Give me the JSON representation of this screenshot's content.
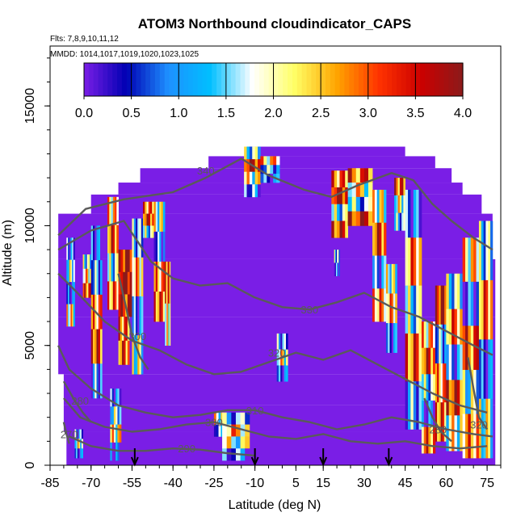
{
  "chart_data": {
    "type": "heatmap",
    "title": "ATOM3 Northbound cloudindicator_CAPS",
    "subtitle_flights": "Flts: 7,8,9,10,11,12",
    "subtitle_dates": "MMDD: 1014,1017,1019,1020,1023,1025",
    "xlabel": "Latitude (deg N)",
    "ylabel": "Altitude (m)",
    "xlim": [
      -85,
      80
    ],
    "ylim": [
      0,
      17500
    ],
    "x_ticks": [
      -85,
      -70,
      -55,
      -40,
      -25,
      -10,
      5,
      15,
      30,
      45,
      60,
      75
    ],
    "y_ticks": [
      0,
      5000,
      10000,
      15000
    ],
    "colorbar": {
      "range": [
        0,
        4
      ],
      "ticks": [
        "0.0",
        "0.5",
        "1.0",
        "1.5",
        "2.0",
        "2.5",
        "3.0",
        "3.5",
        "4.0"
      ],
      "colors": [
        "#7a1ee6",
        "#0000b3",
        "#1e90ff",
        "#00bfff",
        "#ffffff",
        "#ffff66",
        "#ffa500",
        "#ff3300",
        "#cc0000",
        "#8b1a1a"
      ]
    },
    "background_value": 0.0,
    "region_rows": [
      {
        "y0": 0,
        "y1": 1400,
        "x0": -79,
        "x1": 78
      },
      {
        "y0": 1400,
        "y1": 2500,
        "x0": -80,
        "x1": 78
      },
      {
        "y0": 2500,
        "y1": 3800,
        "x0": -80,
        "x1": 78
      },
      {
        "y0": 3800,
        "y1": 6200,
        "x0": -82,
        "x1": 78
      },
      {
        "y0": 6200,
        "y1": 8600,
        "x0": -82,
        "x1": 78
      },
      {
        "y0": 8600,
        "y1": 10500,
        "x0": -82,
        "x1": 77
      },
      {
        "y0": 10500,
        "y1": 11300,
        "x0": -70,
        "x1": 73
      },
      {
        "y0": 11300,
        "y1": 11800,
        "x0": -60,
        "x1": 66
      },
      {
        "y0": 11800,
        "y1": 12400,
        "x0": -52,
        "x1": 62
      },
      {
        "y0": 12400,
        "y1": 12900,
        "x0": -27,
        "x1": 56
      },
      {
        "y0": 12900,
        "y1": 13300,
        "x0": -13,
        "x1": 45
      }
    ],
    "cloud_columns": [
      {
        "lat0": -79,
        "lat1": -76,
        "alt0": 5800,
        "alt1": 9500,
        "values": [
          0.9,
          1.8,
          0.5,
          2.2
        ]
      },
      {
        "lat0": -76,
        "lat1": -73,
        "alt0": 300,
        "alt1": 1500,
        "values": [
          1.0,
          2.0,
          0.6
        ]
      },
      {
        "lat0": -73,
        "lat1": -70,
        "alt0": 7000,
        "alt1": 8800,
        "values": [
          1.5,
          2.4,
          3.0
        ]
      },
      {
        "lat0": -70,
        "lat1": -66,
        "alt0": 2800,
        "alt1": 10000,
        "values": [
          0.6,
          1.2,
          2.6,
          3.2,
          1.0
        ]
      },
      {
        "lat0": -63,
        "lat1": -59,
        "alt0": 200,
        "alt1": 3200,
        "values": [
          0.8,
          1.6,
          2.2,
          0.5
        ]
      },
      {
        "lat0": -64,
        "lat1": -60,
        "alt0": 6500,
        "alt1": 11200,
        "values": [
          2.4,
          3.1,
          1.5,
          2.8
        ]
      },
      {
        "lat0": -60,
        "lat1": -55,
        "alt0": 6200,
        "alt1": 9000,
        "values": [
          3.6,
          3.9,
          3.4
        ]
      },
      {
        "lat0": -60,
        "lat1": -56,
        "alt0": 4200,
        "alt1": 6200,
        "values": [
          2.9,
          3.1
        ]
      },
      {
        "lat0": -55,
        "lat1": -51,
        "alt0": 3800,
        "alt1": 10300,
        "values": [
          1.2,
          2.5,
          0.8,
          1.8
        ]
      },
      {
        "lat0": -51,
        "lat1": -47,
        "alt0": 9500,
        "alt1": 11000,
        "values": [
          2.8,
          3.3,
          1.5
        ]
      },
      {
        "lat0": -47,
        "lat1": -43,
        "alt0": 6000,
        "alt1": 11000,
        "values": [
          1.9,
          0.9,
          2.6,
          3.0
        ]
      },
      {
        "lat0": -43,
        "lat1": -41,
        "alt0": 5000,
        "alt1": 8500,
        "values": [
          3.0,
          2.2
        ]
      },
      {
        "lat0": -25,
        "lat1": -20,
        "alt0": 1200,
        "alt1": 2200,
        "values": [
          2.0,
          1.0
        ]
      },
      {
        "lat0": -22,
        "lat1": -12,
        "alt0": 200,
        "alt1": 2200,
        "values": [
          1.2,
          2.5,
          1.8,
          0.9
        ]
      },
      {
        "lat0": -14,
        "lat1": -8,
        "alt0": 11200,
        "alt1": 13300,
        "values": [
          1.5,
          3.5,
          2.0,
          1.0
        ]
      },
      {
        "lat0": -8,
        "lat1": -1,
        "alt0": 11800,
        "alt1": 12900,
        "values": [
          2.4,
          1.2,
          0.7
        ]
      },
      {
        "lat0": -2,
        "lat1": 2,
        "alt0": 3500,
        "alt1": 5500,
        "values": [
          1.1,
          2.2,
          0.6
        ]
      },
      {
        "lat0": 18,
        "lat1": 24,
        "alt0": 9500,
        "alt1": 12300,
        "values": [
          2.8,
          3.6,
          1.5,
          3.2
        ]
      },
      {
        "lat0": 19,
        "lat1": 21,
        "alt0": 7900,
        "alt1": 9000,
        "values": [
          1.3,
          0.8
        ]
      },
      {
        "lat0": 24,
        "lat1": 33,
        "alt0": 10000,
        "alt1": 12400,
        "values": [
          3.0,
          2.2,
          1.3,
          3.4
        ]
      },
      {
        "lat0": 33,
        "lat1": 38,
        "alt0": 6000,
        "alt1": 11500,
        "values": [
          2.0,
          3.2,
          0.9,
          2.6
        ]
      },
      {
        "lat0": 38,
        "lat1": 42,
        "alt0": 4700,
        "alt1": 8400,
        "values": [
          1.8,
          2.6,
          0.7
        ]
      },
      {
        "lat0": 41,
        "lat1": 45,
        "alt0": 9800,
        "alt1": 12000,
        "values": [
          3.1,
          2.0,
          1.2
        ]
      },
      {
        "lat0": 45,
        "lat1": 51,
        "alt0": 1500,
        "alt1": 11500,
        "values": [
          0.8,
          2.7,
          1.5,
          3.0,
          1.1
        ]
      },
      {
        "lat0": 51,
        "lat1": 56,
        "alt0": 500,
        "alt1": 6000,
        "values": [
          2.4,
          3.2,
          1.4,
          0.6,
          2.9
        ]
      },
      {
        "lat0": 56,
        "lat1": 60,
        "alt0": 1000,
        "alt1": 7500,
        "values": [
          3.5,
          1.2,
          2.6,
          3.0
        ]
      },
      {
        "lat0": 60,
        "lat1": 66,
        "alt0": 600,
        "alt1": 8000,
        "values": [
          1.5,
          2.8,
          0.9,
          3.3,
          2.0
        ]
      },
      {
        "lat0": 66,
        "lat1": 72,
        "alt0": 300,
        "alt1": 9500,
        "values": [
          2.3,
          0.7,
          3.0,
          1.6,
          2.7
        ]
      },
      {
        "lat0": 72,
        "lat1": 77,
        "alt0": 300,
        "alt1": 10200,
        "values": [
          1.4,
          2.9,
          0.6,
          1.9
        ]
      }
    ],
    "contour_lines": [
      {
        "label": "340",
        "label_at": [
          -28,
          12300
        ],
        "points": [
          [
            -82,
            9600
          ],
          [
            -72,
            10700
          ],
          [
            -58,
            11100
          ],
          [
            -40,
            11400
          ],
          [
            -28,
            12000
          ],
          [
            -15,
            12800
          ],
          [
            -5,
            12100
          ],
          [
            8,
            11500
          ],
          [
            18,
            11200
          ],
          [
            28,
            11700
          ],
          [
            40,
            12200
          ],
          [
            48,
            11900
          ],
          [
            55,
            10900
          ],
          [
            62,
            10200
          ],
          [
            70,
            9500
          ],
          [
            77,
            9000
          ]
        ]
      },
      {
        "label": "330",
        "label_at": [
          10,
          6500
        ],
        "points": [
          [
            -82,
            9000
          ],
          [
            -70,
            9800
          ],
          [
            -58,
            10200
          ],
          [
            -48,
            8500
          ],
          [
            -40,
            7800
          ],
          [
            -30,
            7500
          ],
          [
            -20,
            7600
          ],
          [
            -10,
            7000
          ],
          [
            0,
            6600
          ],
          [
            10,
            6500
          ],
          [
            20,
            6800
          ],
          [
            30,
            7200
          ],
          [
            40,
            6600
          ],
          [
            50,
            6200
          ],
          [
            60,
            5600
          ],
          [
            70,
            5000
          ],
          [
            77,
            4600
          ]
        ]
      },
      {
        "label": "320",
        "label_at": [
          -2,
          4700
        ],
        "points": [
          [
            -82,
            8000
          ],
          [
            -75,
            7200
          ],
          [
            -65,
            6000
          ],
          [
            -55,
            5200
          ],
          [
            -45,
            4800
          ],
          [
            -35,
            4200
          ],
          [
            -25,
            3800
          ],
          [
            -15,
            3900
          ],
          [
            -5,
            4300
          ],
          [
            5,
            4700
          ],
          [
            15,
            4400
          ],
          [
            25,
            4800
          ],
          [
            35,
            4200
          ],
          [
            45,
            3600
          ],
          [
            55,
            3000
          ],
          [
            65,
            2500
          ],
          [
            75,
            2200
          ]
        ]
      },
      {
        "label": "310",
        "label_at": [
          -10,
          2300
        ],
        "points": [
          [
            -82,
            5000
          ],
          [
            -78,
            4000
          ],
          [
            -70,
            3200
          ],
          [
            -60,
            2500
          ],
          [
            -50,
            2200
          ],
          [
            -40,
            2000
          ],
          [
            -30,
            2100
          ],
          [
            -20,
            2300
          ],
          [
            -10,
            2300
          ],
          [
            0,
            2000
          ],
          [
            10,
            1800
          ],
          [
            20,
            1500
          ],
          [
            30,
            1700
          ],
          [
            40,
            2000
          ],
          [
            50,
            1800
          ],
          [
            60,
            1500
          ],
          [
            70,
            1300
          ],
          [
            77,
            1200
          ]
        ]
      },
      {
        "label": "300",
        "label_at": [
          -25,
          1800
        ],
        "points": [
          [
            -80,
            2800
          ],
          [
            -74,
            2000
          ],
          [
            -65,
            1600
          ],
          [
            -55,
            1400
          ],
          [
            -45,
            1500
          ],
          [
            -35,
            1700
          ],
          [
            -25,
            1800
          ],
          [
            -15,
            1500
          ],
          [
            -5,
            1200
          ],
          [
            5,
            1100
          ],
          [
            15,
            1300
          ],
          [
            25,
            1000
          ],
          [
            35,
            900
          ],
          [
            45,
            1000
          ],
          [
            55,
            800
          ],
          [
            65,
            700
          ],
          [
            75,
            800
          ]
        ]
      },
      {
        "label": "290",
        "label_at": [
          -35,
          700
        ],
        "points": [
          [
            -78,
            1200
          ],
          [
            -70,
            800
          ],
          [
            -60,
            600
          ],
          [
            -50,
            600
          ],
          [
            -40,
            700
          ],
          [
            -30,
            650
          ],
          [
            -20,
            500
          ],
          [
            -10,
            400
          ]
        ]
      },
      {
        "label": "280",
        "label_at": [
          -74,
          2700
        ],
        "points": [
          [
            -80,
            3500
          ],
          [
            -76,
            2700
          ],
          [
            -73,
            2200
          ],
          [
            -70,
            1800
          ]
        ]
      },
      {
        "label": "280",
        "label_at": [
          57,
          1500
        ],
        "points": [
          [
            52,
            2800
          ],
          [
            55,
            2000
          ],
          [
            58,
            1400
          ],
          [
            62,
            1000
          ]
        ]
      },
      {
        "label": "270",
        "label_at": [
          -78,
          1300
        ],
        "points": [
          [
            -80,
            1800
          ],
          [
            -79,
            1300
          ],
          [
            -78,
            900
          ]
        ]
      },
      {
        "label": "300",
        "label_at": [
          -53,
          5400
        ],
        "points": [
          [
            -60,
            8000
          ],
          [
            -57,
            6500
          ],
          [
            -55,
            5400
          ],
          [
            -52,
            4500
          ],
          [
            -49,
            4000
          ]
        ]
      },
      {
        "label": "320",
        "label_at": [
          72,
          1700
        ],
        "points": [
          [
            68,
            4500
          ],
          [
            70,
            3200
          ],
          [
            72,
            2000
          ],
          [
            75,
            1500
          ]
        ]
      }
    ],
    "flight_arrows_lat": [
      -54,
      -10,
      15,
      39
    ]
  }
}
